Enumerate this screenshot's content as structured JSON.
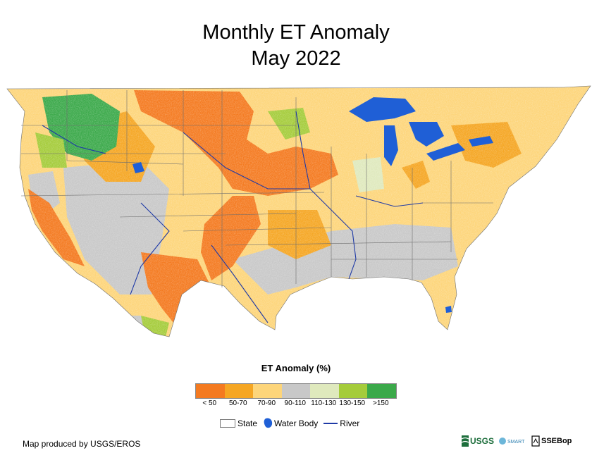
{
  "title": {
    "line1": "Monthly ET Anomaly",
    "line2": "May 2022"
  },
  "legend": {
    "title": "ET Anomaly (%)",
    "classes": [
      {
        "label": "< 50",
        "color": "#f47a20"
      },
      {
        "label": "50-70",
        "color": "#f5a623"
      },
      {
        "label": "70-90",
        "color": "#fdd57a"
      },
      {
        "label": "90-110",
        "color": "#c8c8c8"
      },
      {
        "label": "110-130",
        "color": "#dfe9bd"
      },
      {
        "label": "130-150",
        "color": "#a5cc3b"
      },
      {
        "label": ">150",
        "color": "#3ba94a"
      }
    ],
    "keys": {
      "state": "State",
      "water_body": "Water Body",
      "river": "River"
    }
  },
  "map": {
    "water_color": "#1f5fd6",
    "river_color": "#1f3aa6",
    "border_color": "#6e6e6e"
  },
  "footer": {
    "credit": "Map produced by USGS/EROS"
  },
  "logos": {
    "usgs": "USGS",
    "smart": "SMART",
    "ssebop": "SSEBop"
  }
}
